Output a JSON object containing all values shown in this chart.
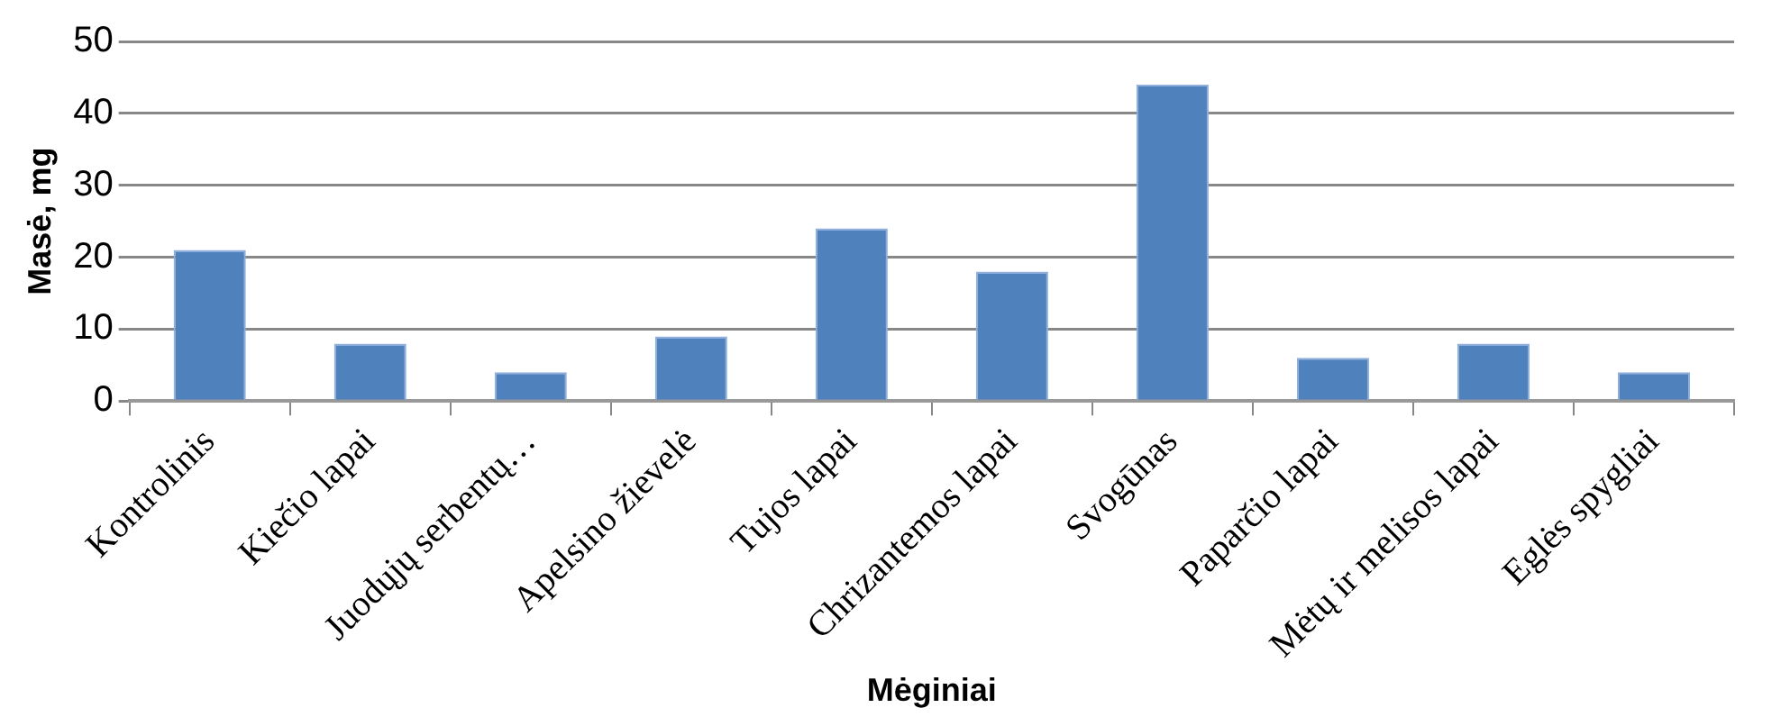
{
  "chart_data": {
    "type": "bar",
    "xlabel": "Mėginiai",
    "ylabel": "Masė, mg",
    "categories": [
      "Kontrolinis",
      "Kiečio lapai",
      "Juodųjų serbentų…",
      "Apelsino žievelė",
      "Tujos lapai",
      "Chrizantemos lapai",
      "Svogūnas",
      "Paparčio lapai",
      "Mėtų ir melisos lapai",
      "Eglės spygliai"
    ],
    "values": [
      21,
      8,
      4,
      9,
      24,
      18,
      44,
      6,
      8,
      4
    ],
    "color": "#4f81bd",
    "ylim": [
      0,
      50
    ],
    "yticks": [
      0,
      10,
      20,
      30,
      40,
      50
    ],
    "grid": "y"
  }
}
